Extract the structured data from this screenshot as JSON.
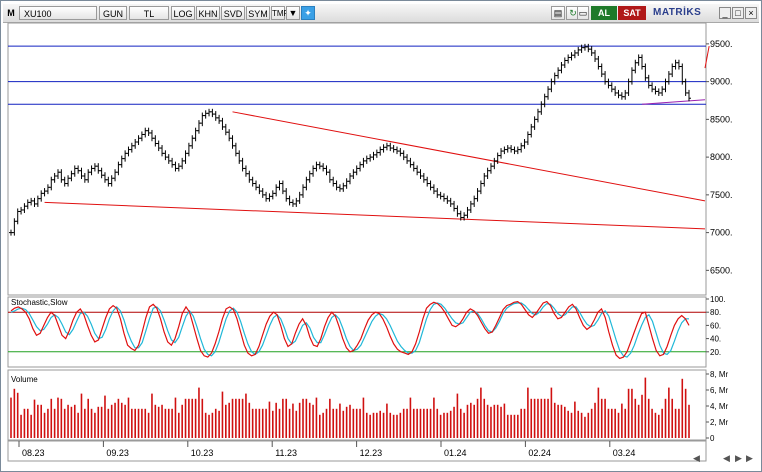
{
  "toolbar": {
    "menu": "M",
    "symbol": "XU100",
    "period": "GUN",
    "currency": "TL",
    "buttons": [
      "LOG",
      "KHN",
      "SVD",
      "SYM",
      "TMP"
    ],
    "dropdown_icon": "triangle-down",
    "twitter_icon": "twitter-bird",
    "window_icons": [
      "chart-icon",
      "refresh-icon",
      "copy-icon"
    ],
    "al_label": "AL",
    "sat_label": "SAT",
    "brand": "MATRİKS",
    "colors": {
      "al": "#1e7a2a",
      "sat": "#b01818",
      "brand": "#2a3e8c"
    }
  },
  "main_panel": {
    "y_ticks": [
      "9500.",
      "9000.",
      "8500.",
      "8000.",
      "7500.",
      "7000.",
      "6500."
    ],
    "y_min": 6200,
    "y_max": 9750,
    "support_lines": [
      9470,
      9000,
      8700
    ],
    "colors": {
      "price": "#000000",
      "trend": "#e01010",
      "horizontal": "#1020c0",
      "purple": "#9a20b0"
    }
  },
  "stochastic_panel": {
    "title": "Stochastic,Slow",
    "y_ticks": [
      "100.",
      "80.",
      "60.",
      "40.",
      "20."
    ],
    "upper_level": 80,
    "lower_level": 20,
    "colors": {
      "k": "#e01010",
      "d": "#20b8d8",
      "upper": "#b00000",
      "lower": "#20a020"
    }
  },
  "volume_panel": {
    "title": "Volume",
    "y_ticks": [
      "8, Mr",
      "6, Mr",
      "4, Mr",
      "2, Mr",
      "0"
    ],
    "y_max": 8,
    "color": "#d01010"
  },
  "x_axis": {
    "labels": [
      "08.23",
      "09.23",
      "10.23",
      "11.23",
      "12.23",
      "01.24",
      "02.24",
      "03.24"
    ]
  },
  "chart_data": {
    "type": "ohlc",
    "x_labels": [
      "08.23",
      "09.23",
      "10.23",
      "11.23",
      "12.23",
      "01.24",
      "02.24",
      "03.24"
    ],
    "close": [
      7000,
      7150,
      7280,
      7300,
      7350,
      7400,
      7420,
      7380,
      7450,
      7520,
      7550,
      7600,
      7700,
      7750,
      7800,
      7700,
      7650,
      7720,
      7780,
      7850,
      7820,
      7750,
      7700,
      7800,
      7850,
      7880,
      7820,
      7760,
      7700,
      7650,
      7720,
      7800,
      7900,
      7980,
      8050,
      8100,
      8150,
      8200,
      8250,
      8300,
      8350,
      8320,
      8250,
      8180,
      8120,
      8050,
      8000,
      7950,
      7900,
      7850,
      7880,
      7950,
      8050,
      8150,
      8250,
      8350,
      8450,
      8550,
      8580,
      8600,
      8570,
      8520,
      8480,
      8400,
      8330,
      8250,
      8150,
      8050,
      7950,
      7850,
      7780,
      7700,
      7650,
      7600,
      7550,
      7500,
      7450,
      7480,
      7520,
      7600,
      7650,
      7550,
      7450,
      7400,
      7380,
      7420,
      7500,
      7600,
      7700,
      7780,
      7850,
      7900,
      7880,
      7850,
      7800,
      7700,
      7650,
      7600,
      7580,
      7620,
      7680,
      7750,
      7800,
      7850,
      7900,
      7950,
      7980,
      8000,
      8030,
      8060,
      8100,
      8130,
      8150,
      8120,
      8100,
      8080,
      8050,
      8000,
      7950,
      7900,
      7850,
      7800,
      7750,
      7700,
      7650,
      7600,
      7550,
      7500,
      7480,
      7450,
      7420,
      7380,
      7320,
      7250,
      7200,
      7230,
      7300,
      7380,
      7450,
      7550,
      7650,
      7750,
      7820,
      7880,
      7950,
      8020,
      8080,
      8100,
      8120,
      8100,
      8080,
      8100,
      8150,
      8200,
      8300,
      8400,
      8500,
      8600,
      8700,
      8800,
      8900,
      9000,
      9080,
      9150,
      9220,
      9280,
      9320,
      9350,
      9380,
      9420,
      9450,
      9460,
      9430,
      9380,
      9300,
      9200,
      9100,
      9000,
      8950,
      8900,
      8850,
      8820,
      8800,
      8850,
      9000,
      9150,
      9250,
      9320,
      9200,
      9050,
      8950,
      8900,
      8870,
      8850,
      8900,
      9000,
      9100,
      9200,
      9250,
      9200,
      9000,
      8850,
      8780
    ],
    "stoch_k": [
      82,
      86,
      88,
      85,
      80,
      70,
      55,
      45,
      48,
      60,
      72,
      80,
      75,
      60,
      45,
      40,
      52,
      68,
      80,
      85,
      76,
      60,
      45,
      35,
      38,
      55,
      72,
      85,
      90,
      86,
      70,
      48,
      30,
      25,
      22,
      30,
      50,
      72,
      88,
      92,
      86,
      70,
      50,
      35,
      30,
      40,
      58,
      78,
      88,
      80,
      60,
      40,
      22,
      14,
      12,
      18,
      32,
      50,
      70,
      85,
      88,
      84,
      70,
      50,
      30,
      18,
      14,
      16,
      28,
      45,
      62,
      74,
      80,
      76,
      60,
      40,
      28,
      32,
      48,
      62,
      70,
      60,
      42,
      30,
      28,
      40,
      58,
      72,
      80,
      74,
      58,
      40,
      26,
      20,
      22,
      30,
      40,
      55,
      68,
      76,
      80,
      78,
      70,
      58,
      44,
      32,
      24,
      20,
      18,
      16,
      20,
      32,
      50,
      70,
      86,
      92,
      95,
      93,
      88,
      80,
      70,
      60,
      58,
      62,
      70,
      80,
      85,
      82,
      75,
      65,
      55,
      48,
      50,
      60,
      72,
      84,
      90,
      92,
      95,
      96,
      92,
      84,
      76,
      72,
      78,
      86,
      94,
      96,
      90,
      78,
      70,
      72,
      80,
      88,
      92,
      85,
      72,
      60,
      54,
      58,
      68,
      80,
      85,
      72,
      50,
      30,
      15,
      10,
      12,
      20,
      35,
      50,
      65,
      78,
      80,
      60,
      40,
      22,
      14,
      16,
      28,
      45,
      60,
      70,
      75,
      70,
      60
    ],
    "stoch_d": [
      80,
      82,
      85,
      86,
      84,
      78,
      68,
      58,
      52,
      54,
      62,
      72,
      76,
      72,
      62,
      50,
      46,
      54,
      66,
      78,
      80,
      74,
      62,
      48,
      40,
      42,
      54,
      70,
      82,
      88,
      82,
      68,
      50,
      36,
      26,
      26,
      34,
      52,
      70,
      86,
      88,
      82,
      68,
      52,
      38,
      34,
      42,
      58,
      74,
      82,
      74,
      58,
      40,
      24,
      16,
      14,
      20,
      34,
      52,
      70,
      82,
      86,
      80,
      66,
      48,
      32,
      20,
      16,
      20,
      30,
      45,
      60,
      72,
      76,
      70,
      56,
      40,
      32,
      36,
      48,
      60,
      64,
      56,
      42,
      34,
      34,
      46,
      60,
      72,
      76,
      70,
      56,
      40,
      28,
      22,
      24,
      30,
      42,
      54,
      66,
      74,
      78,
      76,
      70,
      60,
      48,
      36,
      28,
      22,
      18,
      18,
      22,
      34,
      52,
      70,
      84,
      92,
      94,
      92,
      86,
      78,
      70,
      64,
      62,
      64,
      72,
      80,
      82,
      78,
      70,
      60,
      52,
      50,
      56,
      66,
      78,
      86,
      90,
      93,
      94,
      94,
      90,
      84,
      78,
      76,
      80,
      88,
      93,
      92,
      86,
      78,
      74,
      76,
      82,
      88,
      88,
      80,
      70,
      62,
      58,
      60,
      68,
      78,
      82,
      74,
      56,
      38,
      22,
      14,
      12,
      18,
      30,
      46,
      60,
      72,
      76,
      66,
      48,
      30,
      18,
      16,
      22,
      36,
      52,
      64,
      70,
      70
    ]
  }
}
